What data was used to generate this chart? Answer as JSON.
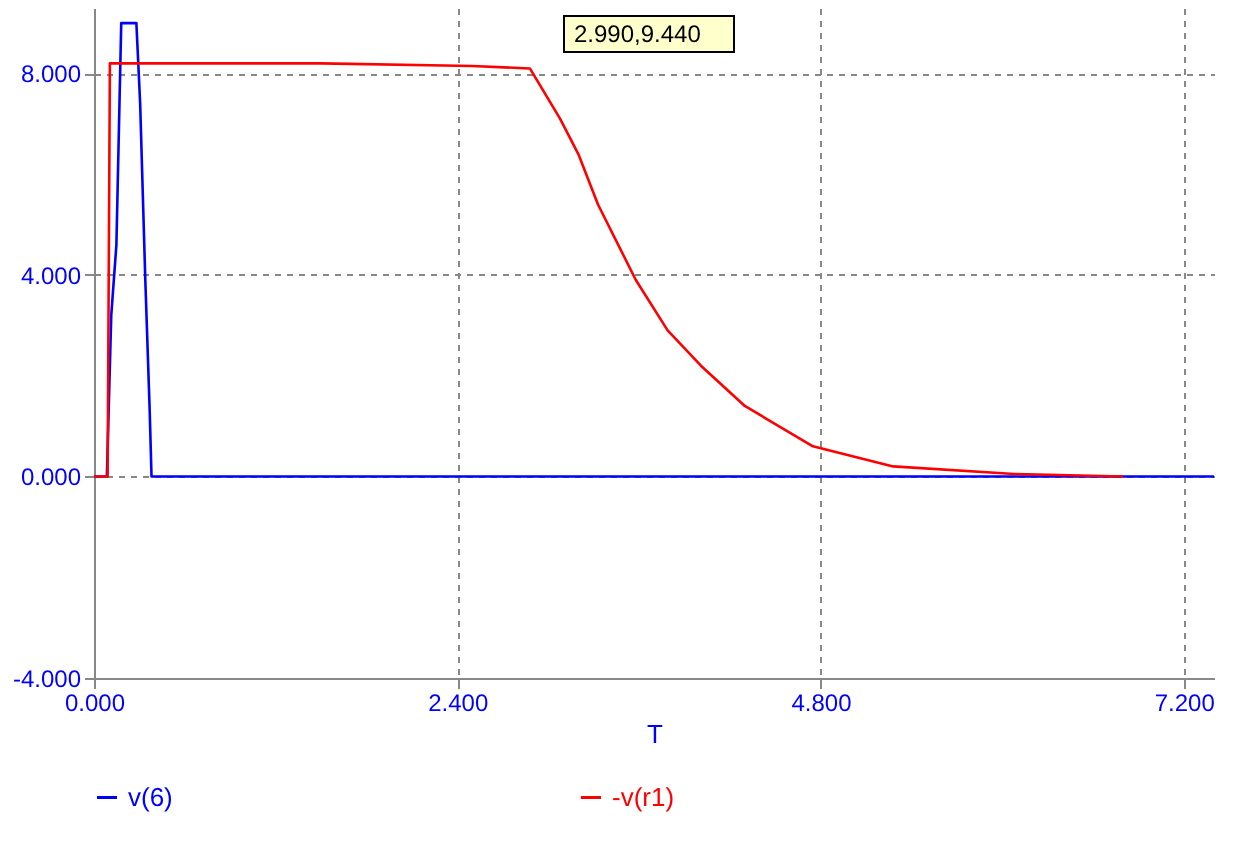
{
  "chart_data": {
    "type": "line",
    "xlabel": "T",
    "annotations": [
      "2.990,9.440"
    ],
    "xlim": [
      0,
      7.4
    ],
    "ylim": [
      -4,
      9.3
    ],
    "xticks": [
      {
        "value": 0,
        "label": "0.000"
      },
      {
        "value": 2.4,
        "label": "2.400"
      },
      {
        "value": 4.8,
        "label": "4.800"
      },
      {
        "value": 7.2,
        "label": "7.200"
      }
    ],
    "yticks": [
      {
        "value": -4,
        "label": "-4.000"
      },
      {
        "value": 0,
        "label": "0.000"
      },
      {
        "value": 4,
        "label": "4.000"
      },
      {
        "value": 8,
        "label": "8.000"
      }
    ],
    "grid": true,
    "legend": "bottom",
    "line_style": "solid",
    "marker": "none",
    "series": [
      {
        "name": "v(6)",
        "color": "#0000ff",
        "x": [
          0,
          0.085,
          0.114,
          0.148,
          0.169,
          0.18,
          0.28,
          0.305,
          0.339,
          0.368,
          0.38,
          7.4
        ],
        "values": [
          0,
          0,
          3.2,
          4.6,
          7.5,
          9.0,
          9.0,
          7.4,
          3.9,
          1.3,
          0,
          0
        ]
      },
      {
        "name": "-v(r1)",
        "color": "#ff0000",
        "x": [
          0,
          0.09,
          0.105,
          0.2,
          1.5,
          2.5,
          2.88,
          3.08,
          3.2,
          3.33,
          3.58,
          3.79,
          4.01,
          4.3,
          4.75,
          5.28,
          6.08,
          6.8
        ],
        "values": [
          0,
          0,
          8.2,
          8.2,
          8.2,
          8.15,
          8.1,
          7.1,
          6.4,
          5.4,
          3.9,
          2.9,
          2.2,
          1.4,
          0.6,
          0.2,
          0.05,
          0
        ]
      }
    ]
  }
}
